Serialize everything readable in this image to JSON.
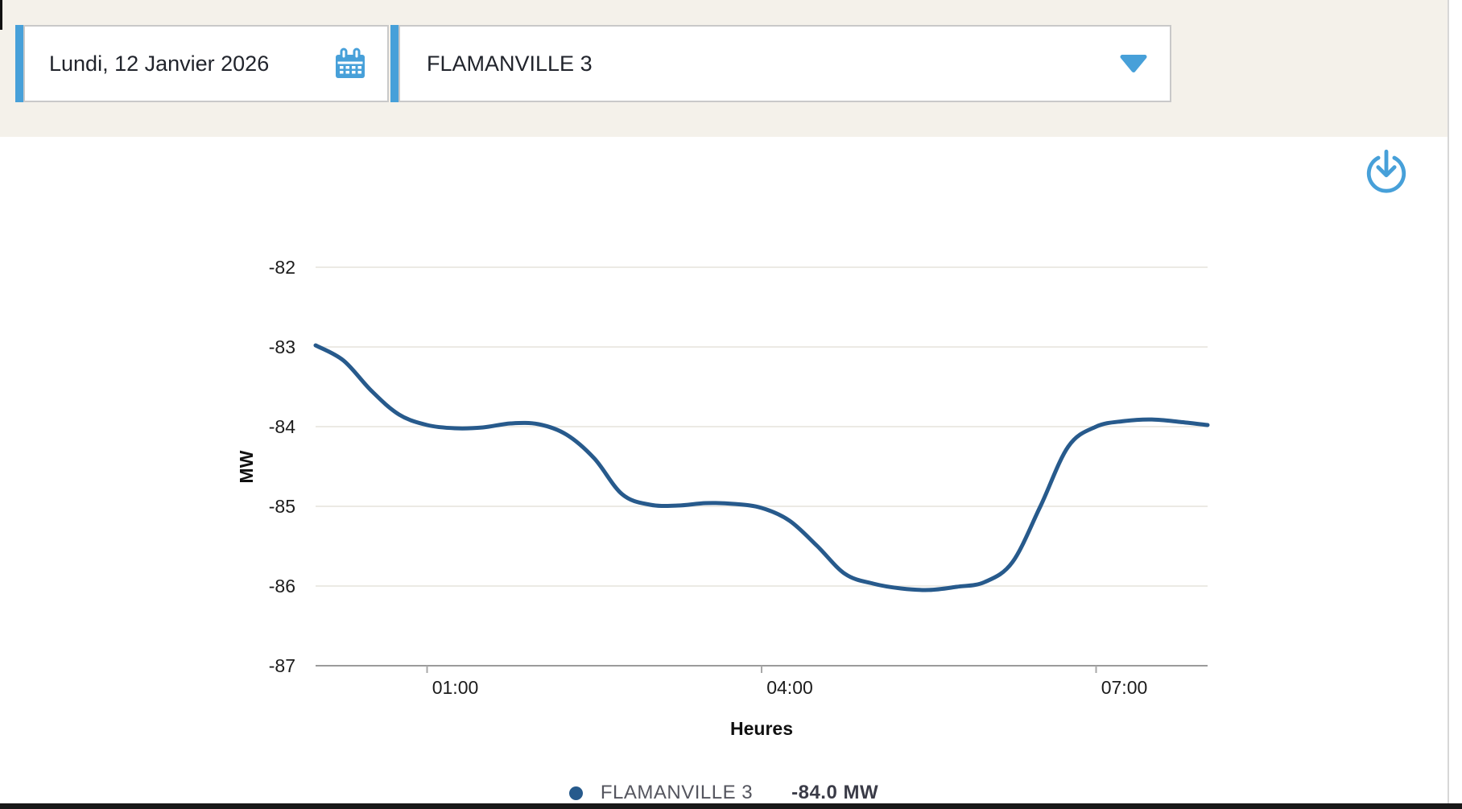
{
  "topbar": {
    "date_picker": {
      "label": "Lundi, 12 Janvier 2026",
      "icon": "calendar-icon"
    },
    "station_dropdown": {
      "selected": "FLAMANVILLE 3",
      "icon": "dropdown-arrow-icon"
    }
  },
  "toolbar": {
    "download_icon": "download-icon"
  },
  "legend": {
    "name": "FLAMANVILLE 3",
    "value": "-84.0 MW"
  },
  "colors": {
    "accent_blue": "#47a0d9",
    "line_blue": "#275a8c",
    "topbar_bg": "#f4f1ea",
    "box_border": "#c9c9c9",
    "grid_line": "#eceae4",
    "axis_line": "#9b9b9b",
    "tick_mark": "#a8a8a8",
    "axis_text": "#1c1c1c",
    "legend_name_text": "#54555e",
    "legend_value_text": "#3a3b47"
  },
  "chart_data": {
    "type": "line",
    "title": "",
    "xlabel": "Heures",
    "ylabel": "MW",
    "xlim": [
      0,
      8
    ],
    "ylim": [
      -87,
      -82
    ],
    "grid": true,
    "legend_position": "bottom",
    "x_ticks": [
      {
        "t": 1,
        "label": "01:00"
      },
      {
        "t": 4,
        "label": "04:00"
      },
      {
        "t": 7,
        "label": "07:00"
      }
    ],
    "y_ticks": [
      {
        "v": -82,
        "label": "-82"
      },
      {
        "v": -83,
        "label": "-83"
      },
      {
        "v": -84,
        "label": "-84"
      },
      {
        "v": -85,
        "label": "-85"
      },
      {
        "v": -86,
        "label": "-86"
      },
      {
        "v": -87,
        "label": "-87"
      }
    ],
    "series": [
      {
        "name": "FLAMANVILLE 3",
        "color": "#275a8c",
        "x": [
          0,
          0.25,
          0.5,
          0.75,
          1,
          1.25,
          1.5,
          1.75,
          2,
          2.25,
          2.5,
          2.75,
          3,
          3.25,
          3.5,
          3.75,
          4,
          4.25,
          4.5,
          4.75,
          5,
          5.25,
          5.5,
          5.75,
          6,
          6.25,
          6.5,
          6.75,
          7,
          7.25,
          7.5,
          7.75,
          8
        ],
        "y": [
          -82.98,
          -83.17,
          -83.55,
          -83.85,
          -83.98,
          -84.02,
          -84.01,
          -83.96,
          -83.97,
          -84.1,
          -84.4,
          -84.85,
          -84.98,
          -84.99,
          -84.96,
          -84.97,
          -85.02,
          -85.18,
          -85.5,
          -85.85,
          -85.97,
          -86.03,
          -86.05,
          -86.01,
          -85.95,
          -85.7,
          -85.0,
          -84.25,
          -84.0,
          -83.93,
          -83.91,
          -83.94,
          -83.98
        ]
      }
    ]
  }
}
